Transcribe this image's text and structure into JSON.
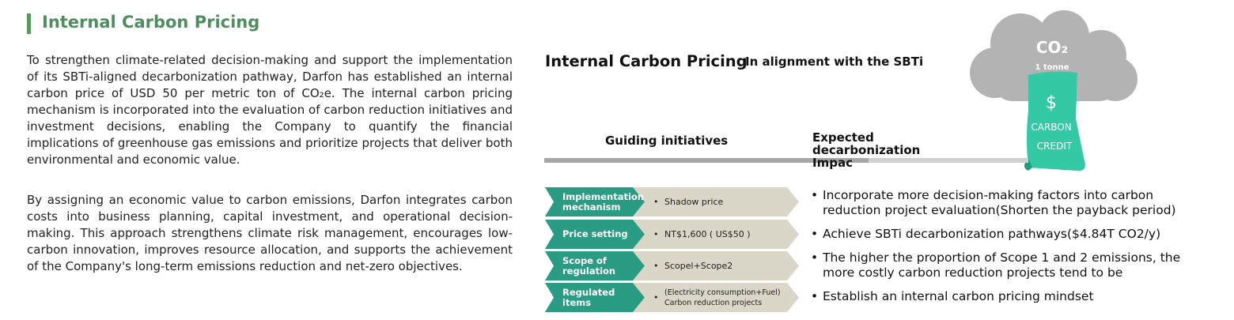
{
  "section": {
    "title": "Internal Carbon Pricing",
    "paragraphs": [
      "To strengthen climate-related decision-making and support the implementation of its SBTi-aligned decarbonization pathway, Darfon has established an internal carbon price of USD 50 per metric ton of CO₂e. The internal carbon pricing mechanism is incorporated into the evaluation of carbon reduction initiatives and investment decisions, enabling the Company to quantify the financial implications of greenhouse gas emissions and prioritize projects that deliver both environmental and economic value.",
      "By assigning an economic value to carbon emissions, Darfon integrates carbon costs into business planning, capital investment, and operational decision-making. This approach strengthens climate risk management, encourages low-carbon innovation, improves resource allocation, and supports the achievement of the Company's long-term emissions reduction and net-zero objectives."
    ]
  },
  "infographic": {
    "title": "Internal Carbon Pricing",
    "subtitle": "In alignment with the SBTi",
    "cloud": {
      "label": "CO₂",
      "unit": "1 tonne"
    },
    "credit": {
      "symbol": "$",
      "lines": [
        "CARBON",
        "CREDIT"
      ]
    },
    "columns": [
      "Guiding initiatives",
      "Expected decarbonization Impac"
    ],
    "rows": [
      {
        "label": "Implementation mechanism",
        "item": "Shadow price"
      },
      {
        "label": "Price setting",
        "item": "NT$1,600 ( US$50 )"
      },
      {
        "label": "Scope of regulation",
        "item": "Scopel+Scope2"
      },
      {
        "label": "Regulated items",
        "item": "(Electricity consumption+Fuel) Carbon reduction projects"
      }
    ],
    "impacts": [
      "Incorporate more decision-making factors into carbon reduction project evaluation(Shorten the payback period)",
      "Achieve SBTi decarbonization pathways($4.84T CO2/y)",
      "The higher the proportion of Scope 1 and 2 emissions, the more costly carbon reduction projects tend to be",
      "Establish an internal carbon pricing mindset"
    ]
  }
}
